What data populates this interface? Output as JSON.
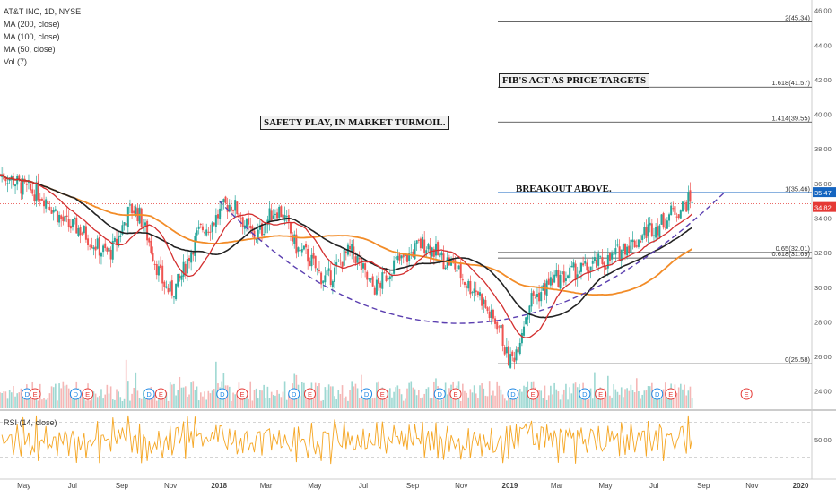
{
  "chart_data": {
    "type": "candlestick",
    "title": "AT&T INC, 1D, NYSE",
    "indicators": [
      "MA (200, close)",
      "MA (100, close)",
      "MA (50, close)",
      "Vol (7)"
    ],
    "rsi_label": "RSI (14, close)",
    "x_tick_labels": [
      "May",
      "Jul",
      "Sep",
      "Nov",
      "2018",
      "Mar",
      "May",
      "Jul",
      "Sep",
      "Nov",
      "2019",
      "Mar",
      "May",
      "Jul",
      "Sep",
      "Nov",
      "2020"
    ],
    "y_ticks": [
      "46.00",
      "44.00",
      "42.00",
      "40.00",
      "38.00",
      "36.00",
      "34.00",
      "32.00",
      "30.00",
      "28.00",
      "26.00",
      "24.00"
    ],
    "rsi_ticks": [
      "50.00"
    ],
    "last_price": "35.47",
    "current_level": "34.82",
    "fib_levels": [
      {
        "label": "2(45.34)",
        "value": 45.34
      },
      {
        "label": "1.618(41.57)",
        "value": 41.57
      },
      {
        "label": "1.414(39.55)",
        "value": 39.55
      },
      {
        "label": "1(35.46)",
        "value": 35.46
      },
      {
        "label": "0.65(32.01)",
        "value": 32.01
      },
      {
        "label": "0.618(31.69)",
        "value": 31.69
      },
      {
        "label": "0(25.58)",
        "value": 25.58
      }
    ],
    "annotations": [
      "SAFETY PLAY, IN MARKET TURMOIL.",
      "FIB'S ACT AS PRICE TARGETS",
      "BREAKOUT ABOVE."
    ],
    "event_markers": [
      "D",
      "E"
    ],
    "price_path": {
      "x_dates": [
        "2017-04-01",
        "2017-05-15",
        "2017-07-01",
        "2017-08-15",
        "2017-09-15",
        "2017-11-01",
        "2017-12-15",
        "2018-01-15",
        "2018-02-15",
        "2018-03-15",
        "2018-04-15",
        "2018-05-15",
        "2018-06-15",
        "2018-07-15",
        "2018-08-15",
        "2018-09-15",
        "2018-10-15",
        "2018-11-15",
        "2018-12-15",
        "2019-01-01",
        "2019-02-01",
        "2019-03-01",
        "2019-04-01",
        "2019-05-01",
        "2019-06-01",
        "2019-07-01",
        "2019-08-01",
        "2019-08-20"
      ],
      "close": [
        36.5,
        35.5,
        33.5,
        32.0,
        34.5,
        29.8,
        33.5,
        34.8,
        33.0,
        34.5,
        32.0,
        30.5,
        32.0,
        30.0,
        31.5,
        32.5,
        31.5,
        30.0,
        28.0,
        25.8,
        29.5,
        30.5,
        31.0,
        31.5,
        32.5,
        33.5,
        34.5,
        35.2
      ]
    },
    "ylim": [
      23,
      46.5
    ],
    "colors": {
      "up": "#26a69a",
      "down": "#ef5350",
      "ma200": "#f28c28",
      "ma100": "#222222",
      "ma50": "#d32f2f",
      "cup": "#5b3fb0",
      "rsi": "#f5a623",
      "last_price": "#1565c0",
      "current_level": "#e53935"
    }
  }
}
